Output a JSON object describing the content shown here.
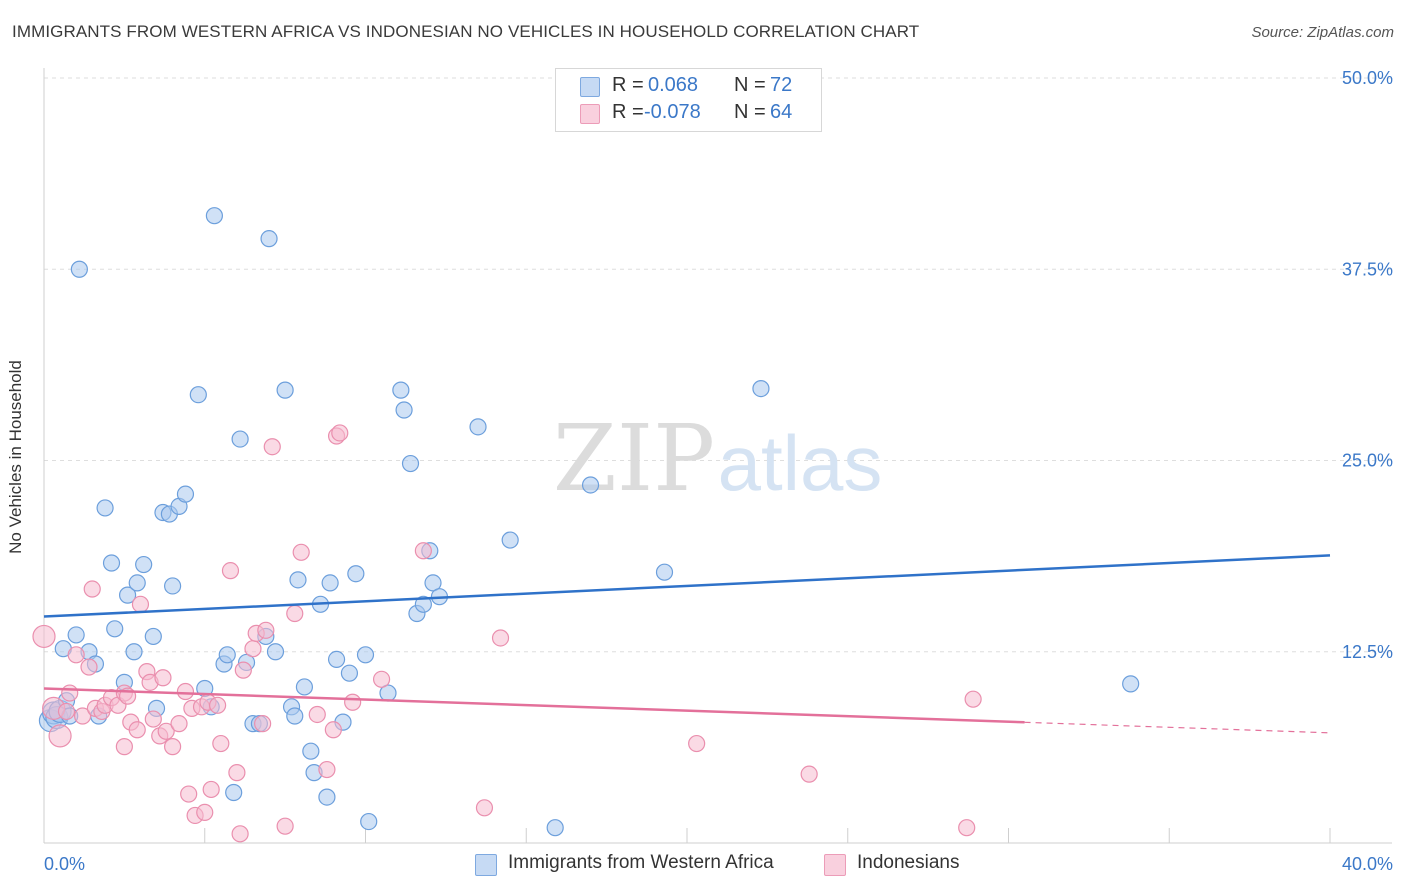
{
  "title": "IMMIGRANTS FROM WESTERN AFRICA VS INDONESIAN NO VEHICLES IN HOUSEHOLD CORRELATION CHART",
  "source": "Source: ZipAtlas.com",
  "watermark": {
    "zip": "ZIP",
    "atlas": "atlas"
  },
  "legend": {
    "r_label": "R =",
    "n_label": "N =",
    "series": [
      {
        "r": "0.068",
        "n": "72"
      },
      {
        "r": "-0.078",
        "n": "64"
      }
    ]
  },
  "bottom_legend": {
    "series1": "Immigrants from Western Africa",
    "series2": "Indonesians"
  },
  "colors": {
    "blue_fill": "#a9c8ef",
    "blue_stroke": "#6c9fdc",
    "blue_line": "#2f72c9",
    "pink_fill": "#f6bcd0",
    "pink_stroke": "#ea8fae",
    "pink_line": "#e3709a",
    "axis_text": "#3b78c8",
    "grid": "#dedede"
  },
  "chart_data": {
    "type": "scatter",
    "title": "IMMIGRANTS FROM WESTERN AFRICA VS INDONESIAN NO VEHICLES IN HOUSEHOLD CORRELATION CHART",
    "xlabel": "",
    "ylabel": "No Vehicles in Household",
    "xlim": [
      0,
      40
    ],
    "ylim": [
      0,
      50
    ],
    "x_tick_labels": [
      "0.0%",
      "40.0%"
    ],
    "y_ticks": [
      12.5,
      25.0,
      37.5,
      50.0
    ],
    "y_tick_labels": [
      "12.5%",
      "25.0%",
      "37.5%",
      "50.0%"
    ],
    "grid": true,
    "legend_position": "top-center",
    "series": [
      {
        "name": "Immigrants from Western Africa",
        "r": 0.068,
        "n": 72,
        "trend": {
          "x": [
            0,
            40
          ],
          "y": [
            14.8,
            18.8
          ],
          "solid_to": 40
        },
        "points": [
          [
            0.2,
            8.0
          ],
          [
            0.3,
            8.5
          ],
          [
            0.4,
            8.2
          ],
          [
            0.5,
            8.6
          ],
          [
            0.6,
            12.7
          ],
          [
            0.7,
            9.3
          ],
          [
            0.8,
            8.3
          ],
          [
            1.0,
            13.6
          ],
          [
            1.1,
            37.5
          ],
          [
            1.4,
            12.5
          ],
          [
            1.6,
            11.7
          ],
          [
            1.7,
            8.3
          ],
          [
            1.9,
            21.9
          ],
          [
            2.1,
            18.3
          ],
          [
            2.2,
            14.0
          ],
          [
            2.5,
            10.5
          ],
          [
            2.6,
            16.2
          ],
          [
            2.8,
            12.5
          ],
          [
            2.9,
            17.0
          ],
          [
            3.1,
            18.2
          ],
          [
            3.4,
            13.5
          ],
          [
            3.5,
            8.8
          ],
          [
            3.7,
            21.6
          ],
          [
            3.9,
            21.5
          ],
          [
            4.0,
            16.8
          ],
          [
            4.2,
            22.0
          ],
          [
            4.4,
            22.8
          ],
          [
            4.8,
            29.3
          ],
          [
            5.0,
            10.1
          ],
          [
            5.3,
            41.0
          ],
          [
            5.2,
            8.9
          ],
          [
            5.6,
            11.7
          ],
          [
            5.7,
            12.3
          ],
          [
            5.9,
            3.3
          ],
          [
            6.1,
            26.4
          ],
          [
            6.3,
            11.8
          ],
          [
            6.5,
            7.8
          ],
          [
            6.7,
            7.8
          ],
          [
            6.9,
            13.5
          ],
          [
            7.0,
            39.5
          ],
          [
            7.2,
            12.5
          ],
          [
            7.5,
            29.6
          ],
          [
            7.7,
            8.9
          ],
          [
            7.8,
            8.3
          ],
          [
            7.9,
            17.2
          ],
          [
            8.1,
            10.2
          ],
          [
            8.3,
            6.0
          ],
          [
            8.4,
            4.6
          ],
          [
            8.6,
            15.6
          ],
          [
            8.8,
            3.0
          ],
          [
            8.9,
            17.0
          ],
          [
            9.1,
            12.0
          ],
          [
            9.3,
            7.9
          ],
          [
            9.5,
            11.1
          ],
          [
            9.7,
            17.6
          ],
          [
            10.0,
            12.3
          ],
          [
            10.1,
            1.4
          ],
          [
            10.7,
            9.8
          ],
          [
            11.1,
            29.6
          ],
          [
            11.2,
            28.3
          ],
          [
            11.4,
            24.8
          ],
          [
            11.6,
            15.0
          ],
          [
            11.8,
            15.6
          ],
          [
            12.0,
            19.1
          ],
          [
            12.1,
            17.0
          ],
          [
            12.3,
            16.1
          ],
          [
            13.5,
            27.2
          ],
          [
            14.5,
            19.8
          ],
          [
            15.9,
            1.0
          ],
          [
            17.0,
            23.4
          ],
          [
            19.3,
            17.7
          ],
          [
            22.3,
            29.7
          ],
          [
            33.8,
            10.4
          ]
        ]
      },
      {
        "name": "Indonesians",
        "r": -0.078,
        "n": 64,
        "trend": {
          "x": [
            0,
            40
          ],
          "y": [
            10.1,
            7.2
          ],
          "solid_to": 30.5
        },
        "points": [
          [
            0.0,
            13.5
          ],
          [
            0.3,
            8.8
          ],
          [
            0.5,
            7.0
          ],
          [
            0.7,
            8.6
          ],
          [
            0.8,
            9.8
          ],
          [
            1.0,
            12.3
          ],
          [
            1.2,
            8.3
          ],
          [
            1.4,
            11.5
          ],
          [
            1.5,
            16.6
          ],
          [
            1.6,
            8.8
          ],
          [
            1.8,
            8.6
          ],
          [
            1.9,
            9.0
          ],
          [
            2.1,
            9.5
          ],
          [
            2.3,
            9.0
          ],
          [
            2.5,
            9.8
          ],
          [
            2.6,
            9.6
          ],
          [
            2.5,
            6.3
          ],
          [
            2.7,
            7.9
          ],
          [
            2.9,
            7.4
          ],
          [
            3.0,
            15.6
          ],
          [
            3.2,
            11.2
          ],
          [
            3.3,
            10.5
          ],
          [
            3.4,
            8.1
          ],
          [
            3.6,
            7.0
          ],
          [
            3.7,
            10.8
          ],
          [
            3.8,
            7.3
          ],
          [
            4.0,
            6.3
          ],
          [
            4.2,
            7.8
          ],
          [
            4.4,
            9.9
          ],
          [
            4.5,
            3.2
          ],
          [
            4.6,
            8.8
          ],
          [
            4.7,
            1.8
          ],
          [
            4.9,
            8.9
          ],
          [
            5.0,
            2.0
          ],
          [
            5.1,
            9.2
          ],
          [
            5.2,
            3.5
          ],
          [
            5.4,
            9.0
          ],
          [
            5.5,
            6.5
          ],
          [
            5.8,
            17.8
          ],
          [
            6.0,
            4.6
          ],
          [
            6.1,
            0.6
          ],
          [
            6.2,
            11.3
          ],
          [
            6.5,
            12.7
          ],
          [
            6.6,
            13.7
          ],
          [
            6.8,
            7.8
          ],
          [
            6.9,
            13.9
          ],
          [
            7.1,
            25.9
          ],
          [
            7.5,
            1.1
          ],
          [
            7.8,
            15.0
          ],
          [
            8.0,
            19.0
          ],
          [
            8.5,
            8.4
          ],
          [
            8.8,
            4.8
          ],
          [
            9.0,
            7.4
          ],
          [
            9.1,
            26.6
          ],
          [
            9.2,
            26.8
          ],
          [
            9.6,
            9.2
          ],
          [
            10.5,
            10.7
          ],
          [
            11.8,
            19.1
          ],
          [
            13.7,
            2.3
          ],
          [
            14.2,
            13.4
          ],
          [
            20.3,
            6.5
          ],
          [
            23.8,
            4.5
          ],
          [
            28.7,
            1.0
          ],
          [
            28.9,
            9.4
          ]
        ]
      }
    ]
  }
}
